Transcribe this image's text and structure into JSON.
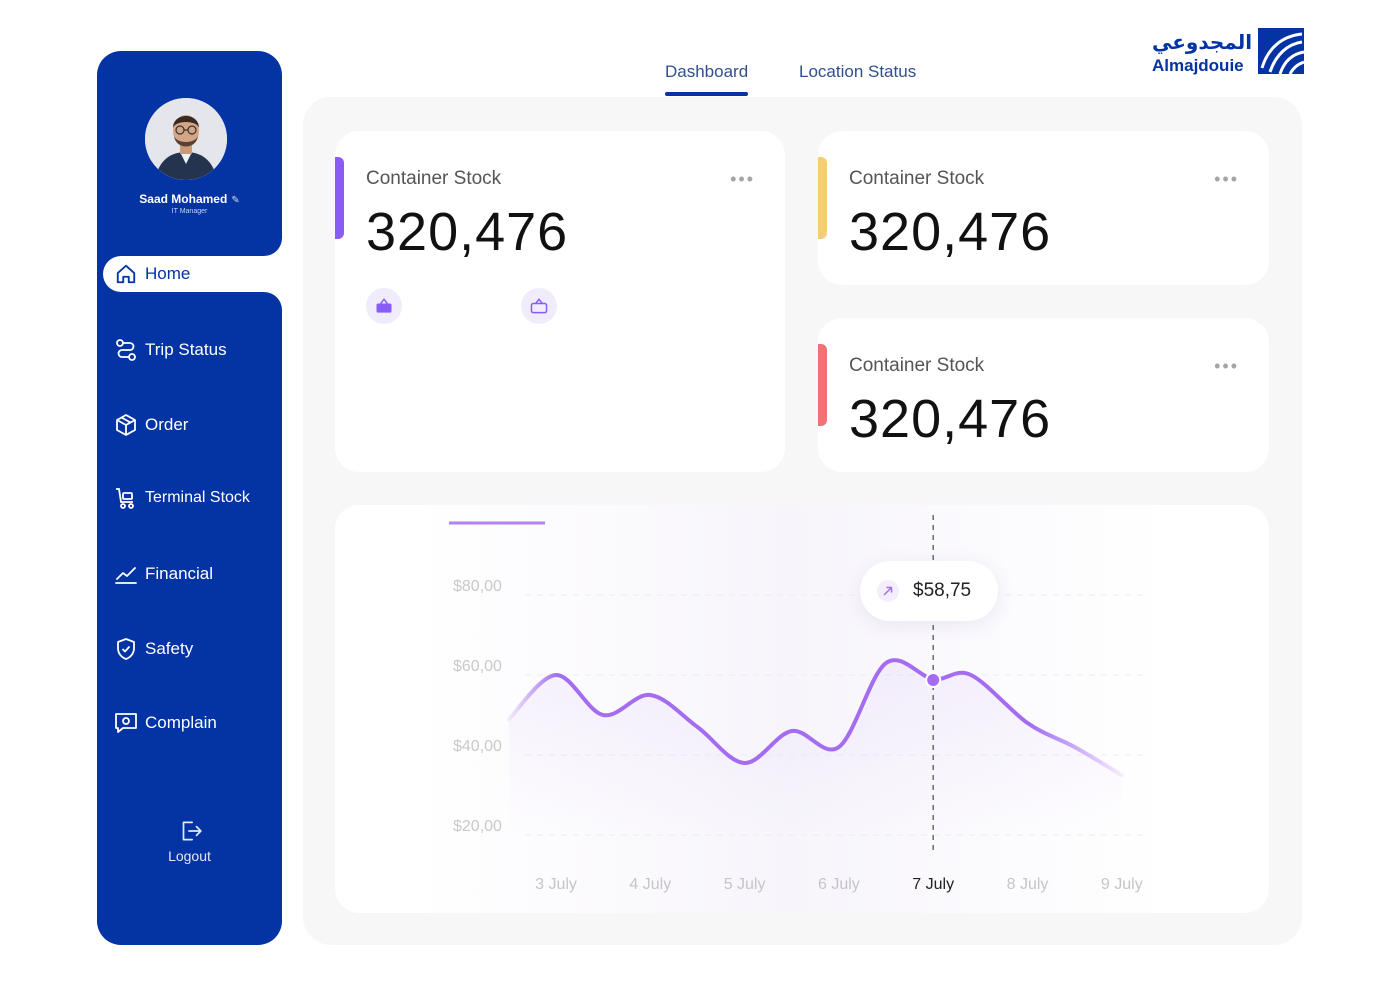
{
  "user": {
    "name": "Saad Mohamed",
    "role": "IT Manager"
  },
  "sidebar": {
    "items": [
      {
        "label": "Home",
        "icon": "home-icon",
        "active": true
      },
      {
        "label": "Trip Status",
        "icon": "route-icon"
      },
      {
        "label": "Order",
        "icon": "box-icon"
      },
      {
        "label": "Terminal Stock",
        "icon": "cart-icon"
      },
      {
        "label": "Financial",
        "icon": "chart-line-icon"
      },
      {
        "label": "Safety",
        "icon": "shield-check-icon"
      },
      {
        "label": "Complain",
        "icon": "message-icon"
      }
    ],
    "logout_label": "Logout"
  },
  "tabs": [
    {
      "label": "Dashboard",
      "active": true
    },
    {
      "label": "Location Status"
    }
  ],
  "logo": {
    "arabic": "المجدوعي",
    "latin": "Almajdouie"
  },
  "cards": [
    {
      "title": "Container Stock",
      "value": "320,476",
      "accent": "#8A5CF6"
    },
    {
      "title": "Container Stock",
      "value": "320,476",
      "accent": "#F7CC77"
    },
    {
      "title": "Container Stock",
      "value": "320,476",
      "accent": "#F07373"
    }
  ],
  "colors": {
    "brand": "#0433A4",
    "chart_line": "#A46CF0"
  },
  "chart_data": {
    "type": "line",
    "categories": [
      "3 July",
      "4 July",
      "5 July",
      "6 July",
      "7 July",
      "8 July",
      "9 July"
    ],
    "y_ticks": [
      "$80,00",
      "$60,00",
      "$40,00",
      "$20,00"
    ],
    "ylim": [
      20,
      80
    ],
    "x": [
      2.5,
      3.0,
      3.5,
      4.0,
      4.5,
      5.0,
      5.5,
      6.0,
      6.5,
      7.0,
      7.4,
      8.0,
      8.5,
      9.0
    ],
    "values": [
      49,
      60,
      50,
      55,
      47,
      38,
      46,
      42,
      63,
      59,
      60,
      48,
      42,
      35
    ],
    "highlight": {
      "category": "7 July",
      "label": "$58,75"
    },
    "grid": true
  }
}
